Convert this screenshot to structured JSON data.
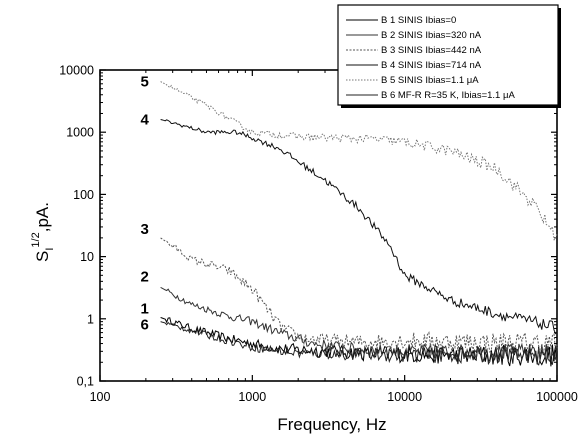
{
  "chart_data": {
    "type": "line",
    "xlabel": "Frequency, Hz",
    "ylabel_main": "S",
    "ylabel_sub": "I",
    "ylabel_sup": "1/2",
    "ylabel_rest": ",pA.",
    "x_scale": "log",
    "y_scale": "log",
    "xlim": [
      100,
      100000
    ],
    "ylim": [
      0.1,
      10000
    ],
    "x_ticks": [
      {
        "value": 100,
        "label": "100"
      },
      {
        "value": 1000,
        "label": "1000"
      },
      {
        "value": 10000,
        "label": "10000"
      },
      {
        "value": 100000,
        "label": "100000"
      }
    ],
    "y_ticks": [
      {
        "value": 0.1,
        "label": "0,1"
      },
      {
        "value": 1,
        "label": "1"
      },
      {
        "value": 10,
        "label": "10"
      },
      {
        "value": 100,
        "label": "100"
      },
      {
        "value": 1000,
        "label": "1000"
      },
      {
        "value": 10000,
        "label": "10000"
      }
    ],
    "grid": false,
    "legend_position": "top-right",
    "series": [
      {
        "name": "B 1 SINIS Ibias=0",
        "curve_label": "1",
        "color": "#000000",
        "dash": "",
        "noise": 0.12,
        "x": [
          250,
          400,
          700,
          1000,
          1500,
          2500,
          5000,
          10000,
          30000,
          100000
        ],
        "y": [
          1.05,
          0.7,
          0.48,
          0.4,
          0.33,
          0.31,
          0.28,
          0.27,
          0.26,
          0.26
        ]
      },
      {
        "name": "B 2 SINIS Ibias=320 nA",
        "curve_label": "2",
        "color": "#333333",
        "dash": "",
        "noise": 0.1,
        "x": [
          250,
          400,
          700,
          1000,
          1500,
          2500,
          5000,
          10000,
          30000,
          100000
        ],
        "y": [
          3.2,
          1.7,
          1.1,
          0.9,
          0.6,
          0.4,
          0.32,
          0.3,
          0.29,
          0.28
        ]
      },
      {
        "name": "B 3 SINIS Ibias=442 nA",
        "curve_label": "3",
        "color": "#555555",
        "dash": "2,1.5",
        "noise": 0.12,
        "x": [
          250,
          400,
          700,
          1000,
          1500,
          2000,
          3000,
          5000,
          10000,
          30000,
          100000
        ],
        "y": [
          20,
          9,
          6,
          3,
          0.8,
          0.5,
          0.45,
          0.42,
          0.45,
          0.42,
          0.4
        ]
      },
      {
        "name": "B 4 SINIS Ibias=714 nA",
        "curve_label": "4",
        "color": "#111111",
        "dash": "",
        "noise": 0.06,
        "x": [
          250,
          500,
          800,
          1500,
          3000,
          5000,
          8000,
          10000,
          20000,
          40000,
          70000,
          100000
        ],
        "y": [
          1600,
          1000,
          1000,
          550,
          170,
          60,
          15,
          5,
          2,
          1.2,
          0.9,
          0.7
        ]
      },
      {
        "name": "B 5 SINIS Ibias=1.1 μA",
        "curve_label": "5",
        "color": "#777777",
        "dash": "1.5,1.5",
        "noise": 0.07,
        "x": [
          250,
          500,
          1000,
          2000,
          4000,
          6000,
          10000,
          20000,
          40000,
          70000,
          100000
        ],
        "y": [
          6500,
          2700,
          1000,
          850,
          800,
          780,
          700,
          500,
          260,
          70,
          20
        ]
      },
      {
        "name": "B 6 MF-R  R=35 K, Ibias=1.1 μA",
        "curve_label": "6",
        "color": "#222222",
        "dash": "",
        "noise": 0.1,
        "x": [
          250,
          500,
          1000,
          2000,
          5000,
          10000,
          30000,
          100000
        ],
        "y": [
          0.9,
          0.55,
          0.35,
          0.28,
          0.27,
          0.26,
          0.26,
          0.26
        ]
      }
    ]
  }
}
